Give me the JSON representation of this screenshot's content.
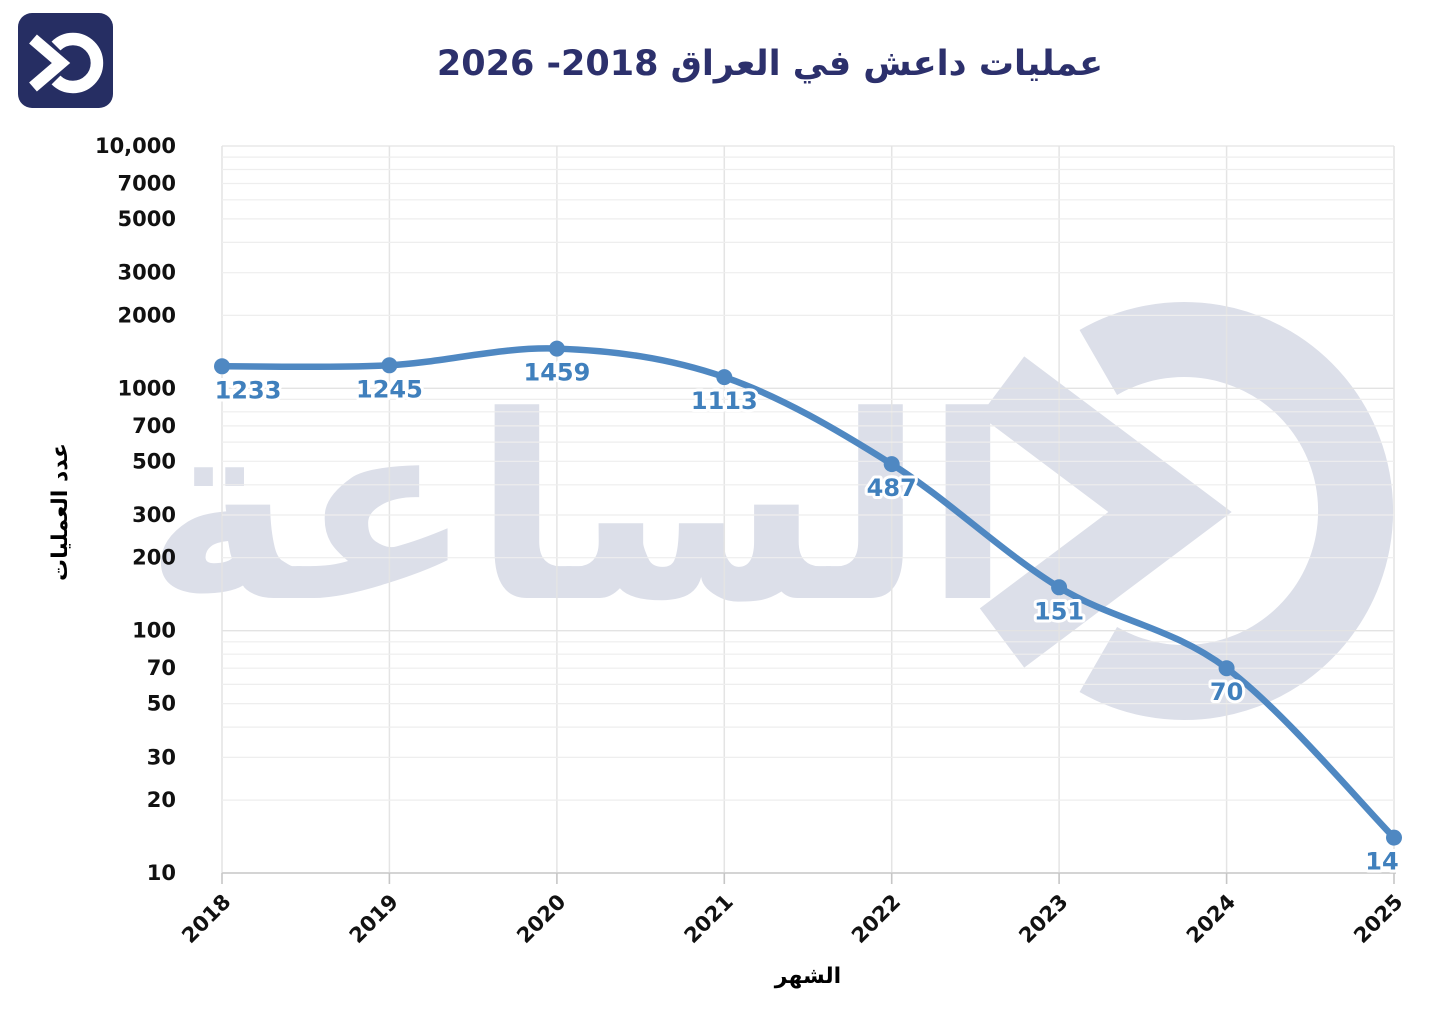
{
  "page": {
    "background": "#ffffff"
  },
  "logo": {
    "name": "alsaa-logo",
    "bg_color": "#262e63",
    "fg_color": "#ffffff"
  },
  "chart": {
    "title": "عمليات داعش في العراق 2018- 2026",
    "title_color": "#2c306c",
    "xlabel": "الشهر",
    "ylabel": "عدد العمليات",
    "watermark_text": "الساعة",
    "watermark_color": "#dcdfe9"
  },
  "chart_data": {
    "type": "line",
    "title": "عمليات داعش في العراق 2018- 2026",
    "xlabel": "الشهر",
    "ylabel": "عدد العمليات",
    "x": [
      2018,
      2019,
      2020,
      2021,
      2022,
      2023,
      2024,
      2025
    ],
    "xtick_labels": [
      "2018",
      "2019",
      "2020",
      "2021",
      "2022",
      "2023",
      "2024",
      "2025"
    ],
    "series": [
      {
        "name": "عدد العمليات",
        "values": [
          1233,
          1245,
          1459,
          1113,
          487,
          151,
          70,
          14
        ]
      }
    ],
    "point_labels": [
      "1233",
      "1245",
      "1459",
      "1113",
      "487",
      "151",
      "70",
      "14"
    ],
    "yscale": "log",
    "ylim": [
      10,
      10000
    ],
    "ytick_values": [
      10000,
      7000,
      5000,
      3000,
      2000,
      1000,
      700,
      500,
      300,
      200,
      100,
      70,
      50,
      30,
      20,
      10
    ],
    "ytick_labels": [
      "10,000",
      "7000",
      "5000",
      "3000",
      "2000",
      "1000",
      "700",
      "500",
      "300",
      "200",
      "100",
      "70",
      "50",
      "30",
      "20",
      "10"
    ],
    "grid": true,
    "legend": false,
    "line_color": "#4f88c2",
    "marker_color": "#4f88c2",
    "label_color": "#4080bd",
    "tick_label_color": "#111111"
  }
}
